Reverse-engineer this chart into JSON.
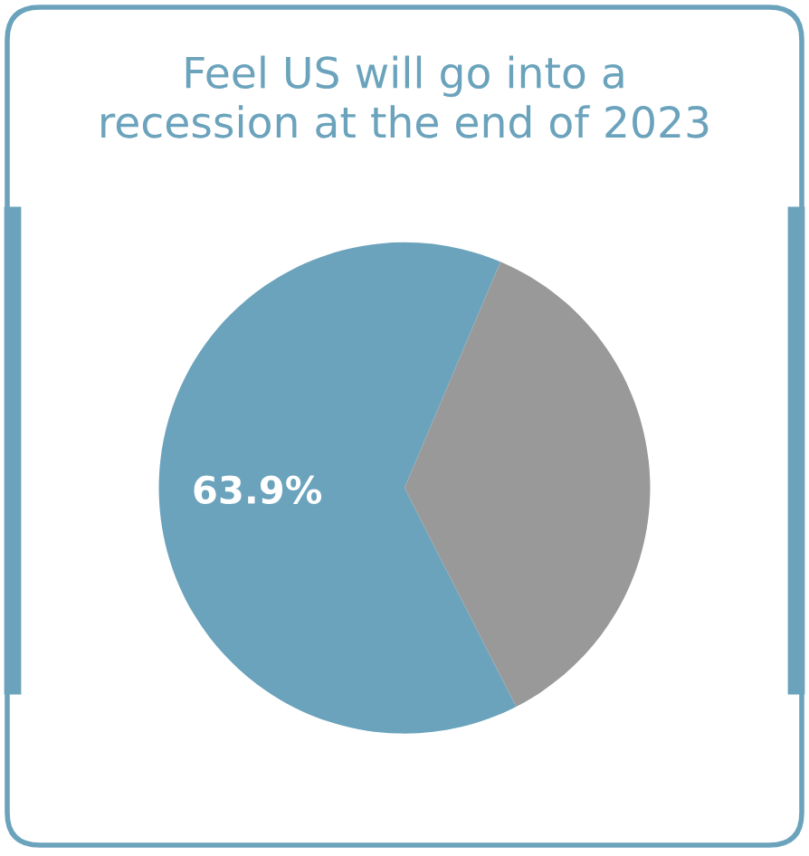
{
  "chart_data": {
    "type": "pie",
    "title": "Feel US will go into a\nrecession at the end of 2023",
    "categories": [
      null,
      null
    ],
    "values": [
      63.9,
      36.1
    ],
    "colors": [
      "#6ba3bc",
      "#999999"
    ],
    "value_labels": [
      "63.9%",
      null
    ]
  }
}
